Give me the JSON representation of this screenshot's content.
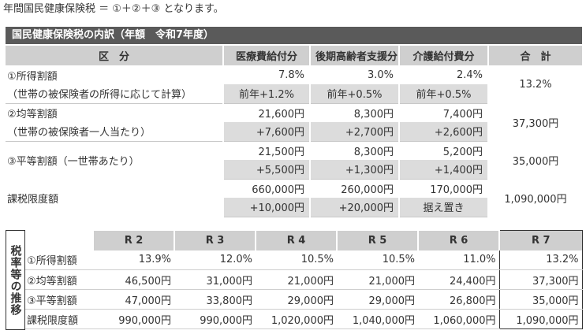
{
  "intro": "年間国民健康保険税 ＝ ①＋②＋③ となります。",
  "section_title": "国民健康保険税の内訳（年額　令和7年度）",
  "main_table": {
    "headers": [
      "区　分",
      "医療費給付分",
      "後期高齢者支援分",
      "介護給付費分",
      "合　計"
    ],
    "rows": [
      {
        "label1": "①所得割額",
        "label2": "（世帯の被保険者の所得に応じて計算）",
        "values": [
          "7.8%",
          "3.0%",
          "2.4%"
        ],
        "prev": [
          "前年+1.2%",
          "前年+0.5%",
          "前年+0.5%"
        ],
        "total": "13.2%"
      },
      {
        "label1": "②均等割額",
        "label2": "（世帯の被保険者一人当たり）",
        "values": [
          "21,600円",
          "8,300円",
          "7,400円"
        ],
        "prev": [
          "+7,600円",
          "+2,700円",
          "+2,600円"
        ],
        "total": "37,300円"
      },
      {
        "label1": "③平等割額（一世帯あたり）",
        "label2": "",
        "values": [
          "21,500円",
          "8,300円",
          "5,200円"
        ],
        "prev": [
          "+5,500円",
          "+1,300円",
          "+1,400円"
        ],
        "total": "35,000円"
      },
      {
        "label1": "課税限度額",
        "label2": "",
        "values": [
          "660,000円",
          "260,000円",
          "170,000円"
        ],
        "prev": [
          "+10,000円",
          "+20,000円",
          "据え置き"
        ],
        "total": "1,090,000円"
      }
    ]
  },
  "trend": {
    "side_label": "税率等の推移",
    "years": [
      "R 2",
      "R 3",
      "R 4",
      "R 5",
      "R 6",
      "R 7"
    ],
    "rows": [
      {
        "label": "①所得割額",
        "values": [
          "13.9%",
          "12.0%",
          "10.5%",
          "10.5%",
          "11.0%",
          "13.2%"
        ]
      },
      {
        "label": "②均等割額",
        "values": [
          "46,500円",
          "31,000円",
          "21,000円",
          "21,000円",
          "24,400円",
          "37,300円"
        ]
      },
      {
        "label": "③平等割額",
        "values": [
          "47,000円",
          "33,800円",
          "29,000円",
          "29,000円",
          "26,800円",
          "35,000円"
        ]
      },
      {
        "label": "課税限度額",
        "values": [
          "990,000円",
          "990,000円",
          "1,020,000円",
          "1,040,000円",
          "1,060,000円",
          "1,090,000円"
        ]
      }
    ]
  }
}
